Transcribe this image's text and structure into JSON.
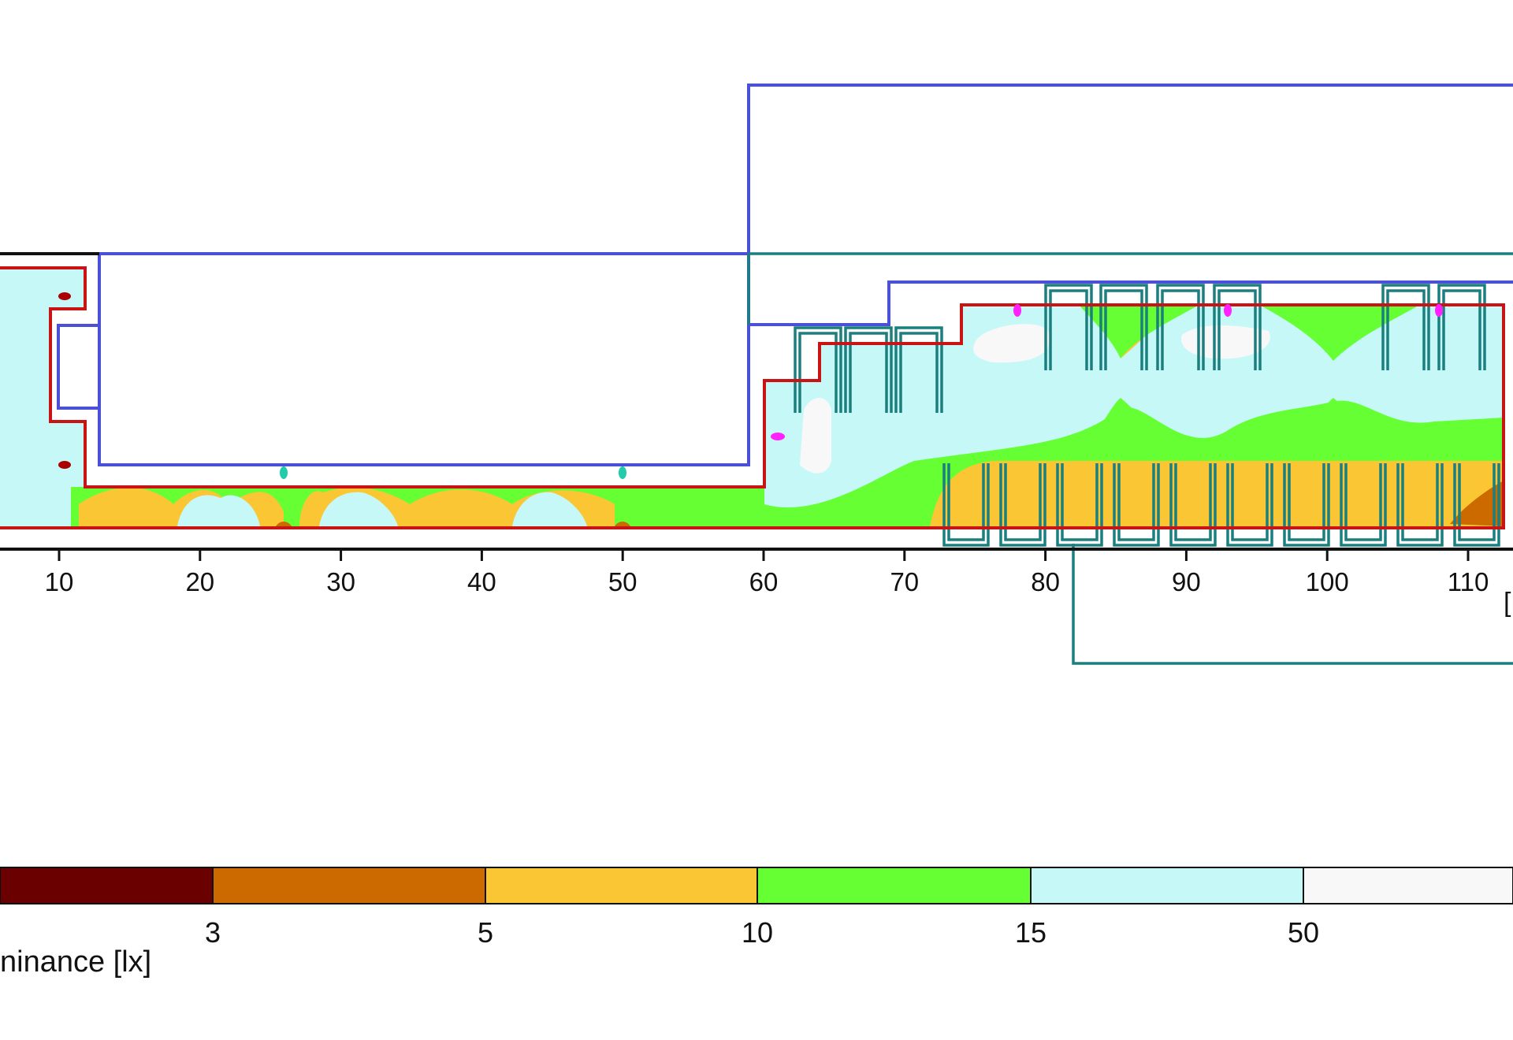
{
  "chart_data": {
    "type": "heatmap",
    "title": "",
    "xlabel": "",
    "axis_unit_fragment": "[",
    "x_ticks": [
      10,
      20,
      30,
      40,
      50,
      60,
      70,
      80,
      90,
      100,
      110
    ],
    "legend": {
      "title": "ninance [lx]",
      "levels": [
        "3",
        "5",
        "10",
        "15",
        "50"
      ],
      "bins": [
        {
          "range": "< 3",
          "color": "#6b0000"
        },
        {
          "range": "3-5",
          "color": "#cc6a00"
        },
        {
          "range": "5-10",
          "color": "#fbc634"
        },
        {
          "range": "10-15",
          "color": "#66ff33"
        },
        {
          "range": "15-50",
          "color": "#c6f8f8"
        },
        {
          "range": "> 50",
          "color": "#f8f8f8"
        }
      ]
    }
  },
  "colors": {
    "escape_route_outline": "#c81414",
    "room_outline": "#4a50d8",
    "luminaire_outline": "#1a7f7f",
    "axis": "#111111",
    "emergency_marker_magenta": "#ff22ff",
    "emergency_marker_teal": "#22ccaa",
    "emergency_marker_darkred": "#aa0000"
  }
}
